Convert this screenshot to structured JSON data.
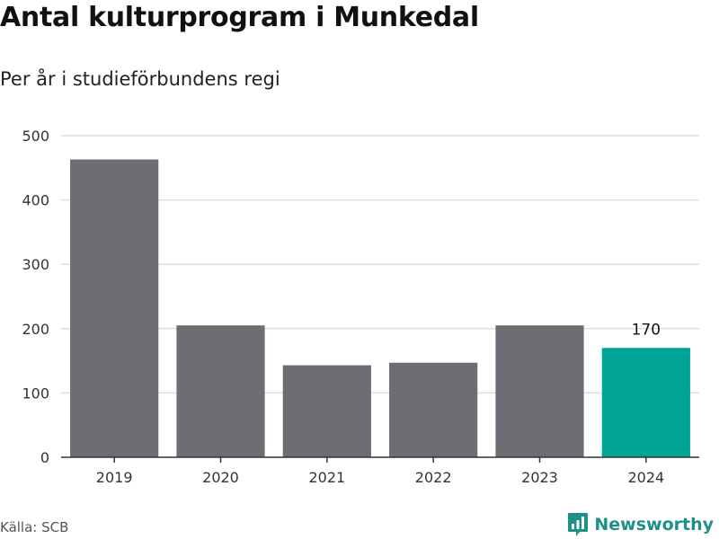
{
  "chart_data": {
    "type": "bar",
    "title": "Antal kulturprogram i Munkedal",
    "subtitle": "Per år i studieförbundens regi",
    "categories": [
      "2019",
      "2020",
      "2021",
      "2022",
      "2023",
      "2024"
    ],
    "values": [
      463,
      205,
      143,
      147,
      205,
      170
    ],
    "ylim": [
      0,
      500
    ],
    "yticks": [
      0,
      100,
      200,
      300,
      400,
      500
    ],
    "grid": true,
    "highlight_index": 5,
    "data_labels": [
      null,
      null,
      null,
      null,
      null,
      "170"
    ],
    "colors": {
      "bar": "#6e6d73",
      "highlight": "#00a497",
      "grid": "#dddddd",
      "axis": "#333333",
      "tick_text": "#333333"
    }
  },
  "source": "Källa: SCB",
  "brand": {
    "name": "Newsworthy",
    "icon": "newsworthy-logo-icon",
    "color": "#1f8f8a"
  }
}
